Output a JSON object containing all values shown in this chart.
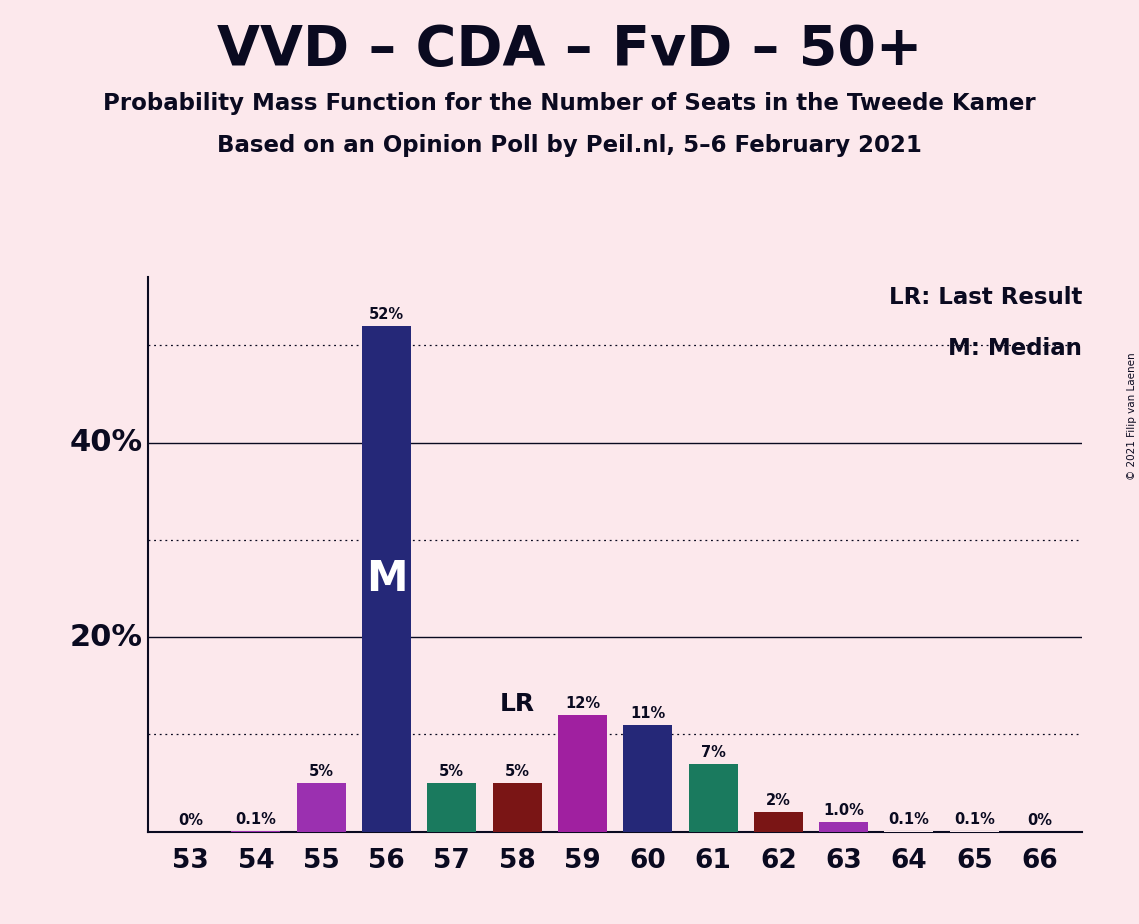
{
  "title": "VVD – CDA – FvD – 50+",
  "subtitle1": "Probability Mass Function for the Number of Seats in the Tweede Kamer",
  "subtitle2": "Based on an Opinion Poll by Peil.nl, 5–6 February 2021",
  "copyright": "© 2021 Filip van Laenen",
  "seats": [
    53,
    54,
    55,
    56,
    57,
    58,
    59,
    60,
    61,
    62,
    63,
    64,
    65,
    66
  ],
  "values": [
    0.0,
    0.1,
    5.0,
    52.0,
    5.0,
    5.0,
    12.0,
    11.0,
    7.0,
    2.0,
    1.0,
    0.1,
    0.1,
    0.0
  ],
  "labels": [
    "0%",
    "0.1%",
    "5%",
    "52%",
    "5%",
    "5%",
    "12%",
    "11%",
    "7%",
    "2%",
    "1.0%",
    "0.1%",
    "0.1%",
    "0%"
  ],
  "colors": [
    "#fce8ec",
    "#9b30b0",
    "#9b30b0",
    "#252878",
    "#1a7a5e",
    "#7a1515",
    "#a020a0",
    "#252878",
    "#1a7a5e",
    "#7a1515",
    "#9b30b0",
    "#fce8ec",
    "#fce8ec",
    "#fce8ec"
  ],
  "background_color": "#fce8ec",
  "title_color": "#0a0a20",
  "ylim_max": 57,
  "dotted_lines": [
    10,
    30,
    50
  ],
  "solid_lines": [
    20,
    40
  ],
  "bar_width": 0.75
}
